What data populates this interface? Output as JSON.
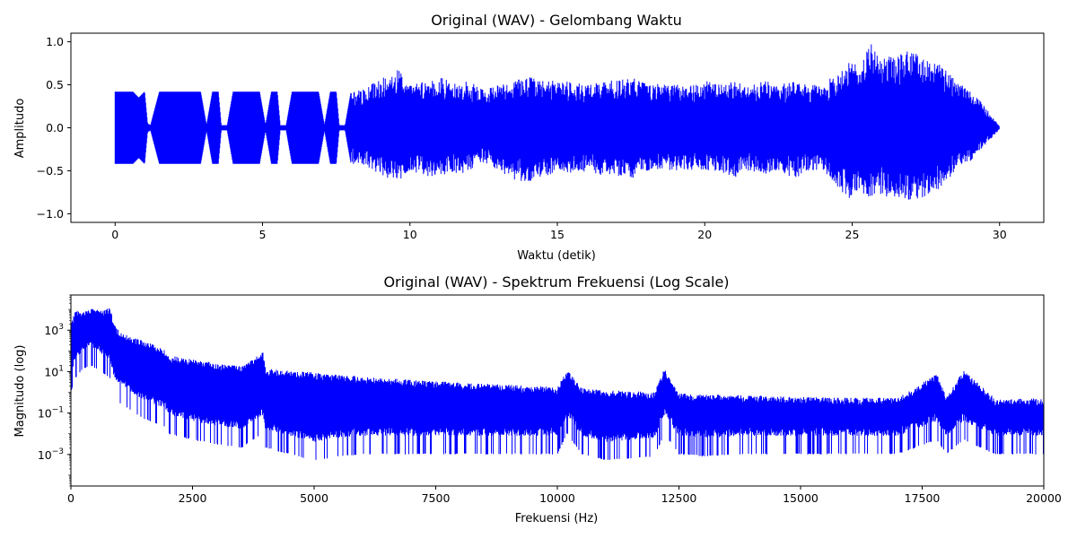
{
  "chart_data": [
    {
      "type": "line",
      "title": "Original (WAV) - Gelombang Waktu",
      "xlabel": "Waktu (detik)",
      "ylabel": "Amplitudo",
      "xlim": [
        -1.5,
        31.5
      ],
      "ylim": [
        -1.1,
        1.1
      ],
      "x_ticks": [
        0,
        5,
        10,
        15,
        20,
        25,
        30
      ],
      "x_tick_labels": [
        "0",
        "5",
        "10",
        "15",
        "20",
        "25",
        "30"
      ],
      "y_ticks": [
        1.0,
        0.5,
        0.0,
        -0.5,
        -1.0
      ],
      "y_tick_labels": [
        "1.0",
        "0.5",
        "0.0",
        "−0.5",
        "−1.0"
      ],
      "grid": false,
      "series": [
        {
          "color": "#0000ff",
          "x": [
            0.0,
            0.3,
            0.6,
            0.8,
            1.0,
            1.1,
            1.2,
            1.5,
            1.7,
            2.0,
            2.3,
            2.6,
            2.9,
            3.1,
            3.3,
            3.5,
            3.6,
            3.8,
            4.0,
            4.3,
            4.6,
            4.9,
            5.1,
            5.3,
            5.5,
            5.6,
            5.8,
            6.0,
            6.3,
            6.6,
            6.9,
            7.1,
            7.3,
            7.5,
            7.6,
            7.8,
            8.0,
            8.5,
            9.0,
            9.3,
            9.6,
            10.0,
            10.5,
            11.0,
            11.3,
            11.6,
            12.0,
            12.5,
            13.0,
            13.5,
            14.0,
            14.5,
            15.0,
            15.5,
            16.0,
            16.5,
            17.0,
            17.5,
            18.0,
            18.5,
            19.0,
            19.5,
            20.0,
            20.5,
            21.0,
            21.5,
            22.0,
            22.5,
            23.0,
            23.5,
            24.0,
            24.5,
            25.0,
            25.3,
            25.6,
            26.0,
            26.5,
            27.0,
            27.5,
            28.0,
            28.5,
            29.0,
            29.5,
            30.0
          ],
          "y_max": [
            0.42,
            0.42,
            0.42,
            0.35,
            0.42,
            0.05,
            0.03,
            0.42,
            0.42,
            0.42,
            0.42,
            0.42,
            0.42,
            0.03,
            0.42,
            0.42,
            0.03,
            0.03,
            0.42,
            0.42,
            0.42,
            0.42,
            0.03,
            0.42,
            0.42,
            0.03,
            0.03,
            0.42,
            0.42,
            0.42,
            0.42,
            0.03,
            0.42,
            0.42,
            0.03,
            0.03,
            0.42,
            0.45,
            0.6,
            0.55,
            0.7,
            0.5,
            0.55,
            0.6,
            0.55,
            0.5,
            0.55,
            0.45,
            0.5,
            0.55,
            0.6,
            0.55,
            0.55,
            0.55,
            0.5,
            0.55,
            0.55,
            0.6,
            0.55,
            0.5,
            0.5,
            0.5,
            0.55,
            0.5,
            0.55,
            0.5,
            0.55,
            0.5,
            0.55,
            0.5,
            0.5,
            0.65,
            0.8,
            0.7,
            1.0,
            0.8,
            0.85,
            0.9,
            0.8,
            0.75,
            0.55,
            0.45,
            0.25,
            0.02
          ],
          "y_min": [
            -0.42,
            -0.42,
            -0.42,
            -0.35,
            -0.42,
            -0.05,
            -0.03,
            -0.42,
            -0.42,
            -0.42,
            -0.42,
            -0.42,
            -0.42,
            -0.03,
            -0.42,
            -0.42,
            -0.03,
            -0.03,
            -0.42,
            -0.42,
            -0.42,
            -0.42,
            -0.03,
            -0.42,
            -0.42,
            -0.03,
            -0.03,
            -0.42,
            -0.42,
            -0.42,
            -0.42,
            -0.03,
            -0.42,
            -0.42,
            -0.03,
            -0.03,
            -0.42,
            -0.45,
            -0.55,
            -0.6,
            -0.65,
            -0.5,
            -0.55,
            -0.6,
            -0.5,
            -0.55,
            -0.5,
            -0.4,
            -0.5,
            -0.6,
            -0.65,
            -0.6,
            -0.55,
            -0.55,
            -0.5,
            -0.55,
            -0.55,
            -0.6,
            -0.5,
            -0.5,
            -0.5,
            -0.5,
            -0.5,
            -0.5,
            -0.6,
            -0.5,
            -0.55,
            -0.5,
            -0.6,
            -0.5,
            -0.5,
            -0.7,
            -0.85,
            -0.75,
            -0.85,
            -0.8,
            -0.8,
            -0.85,
            -0.8,
            -0.7,
            -0.5,
            -0.4,
            -0.2,
            -0.02
          ]
        }
      ]
    },
    {
      "type": "line",
      "title": "Original (WAV) - Spektrum Frekuensi (Log Scale)",
      "xlabel": "Frekuensi (Hz)",
      "ylabel": "Magnitudo (log)",
      "xlim": [
        0,
        20000
      ],
      "ylim": [
        3e-05,
        50000
      ],
      "y_scale": "log",
      "x_ticks": [
        0,
        2500,
        5000,
        7500,
        10000,
        12500,
        15000,
        17500,
        20000
      ],
      "x_tick_labels": [
        "0",
        "2500",
        "5000",
        "7500",
        "10000",
        "12500",
        "15000",
        "17500",
        "20000"
      ],
      "y_ticks": [
        1000,
        10,
        0.1,
        0.001
      ],
      "y_tick_base": [
        "10",
        "10",
        "10",
        "10"
      ],
      "y_tick_exp": [
        "3",
        "1",
        "−1",
        "−3"
      ],
      "grid": false,
      "series": [
        {
          "color": "#0000ff",
          "x": [
            0,
            100,
            200,
            400,
            600,
            800,
            900,
            1000,
            1500,
            1950,
            2000,
            2500,
            3000,
            3500,
            3950,
            4000,
            4500,
            5000,
            5500,
            6000,
            7000,
            7500,
            8000,
            9000,
            10000,
            10200,
            10500,
            11000,
            12000,
            12200,
            12500,
            13000,
            14000,
            15000,
            16000,
            17000,
            17800,
            18000,
            18350,
            19000,
            20000
          ],
          "y_max": [
            2000,
            10000,
            8000,
            12000,
            9000,
            12000,
            2000,
            800,
            300,
            120,
            60,
            40,
            25,
            18,
            90,
            14,
            11,
            9,
            7,
            6,
            4,
            3.5,
            3,
            2.3,
            1.8,
            12,
            1.6,
            1.3,
            1.0,
            15,
            0.9,
            0.8,
            0.7,
            0.6,
            0.55,
            0.55,
            8,
            0.55,
            12,
            0.5,
            0.5
          ],
          "y_min": [
            1,
            5,
            10,
            20,
            10,
            5,
            0.5,
            0.3,
            0.05,
            0.02,
            0.01,
            0.005,
            0.003,
            0.002,
            0.01,
            0.002,
            0.001,
            0.0005,
            0.0008,
            0.001,
            0.001,
            0.001,
            0.001,
            0.001,
            0.001,
            0.01,
            0.001,
            0.0005,
            0.0008,
            0.01,
            0.001,
            0.0008,
            0.001,
            0.001,
            0.001,
            0.001,
            0.005,
            0.001,
            0.005,
            0.001,
            0.001
          ]
        }
      ]
    }
  ]
}
